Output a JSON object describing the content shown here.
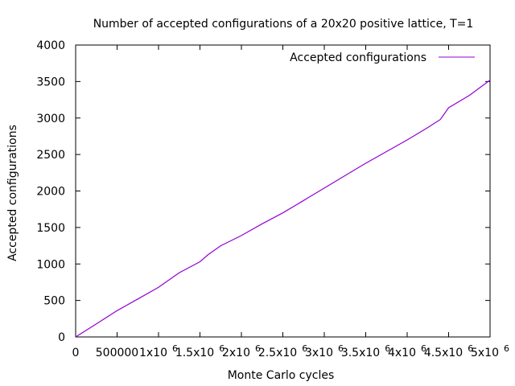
{
  "chart_data": {
    "type": "line",
    "title": "Number of accepted configurations of a 20x20 positive lattice, T=1",
    "xlabel": "Monte Carlo cycles",
    "ylabel": "Accepted configurations",
    "xlim": [
      0,
      5000000
    ],
    "ylim": [
      0,
      4000
    ],
    "grid": false,
    "legend_position": "top-right",
    "x_ticks": [
      {
        "value": 0,
        "mantissa": "0",
        "exp": ""
      },
      {
        "value": 500000,
        "mantissa": "500000",
        "exp": ""
      },
      {
        "value": 1000000,
        "mantissa": "1x10",
        "exp": "6"
      },
      {
        "value": 1500000,
        "mantissa": "1.5x10",
        "exp": "6"
      },
      {
        "value": 2000000,
        "mantissa": "2x10",
        "exp": "6"
      },
      {
        "value": 2500000,
        "mantissa": "2.5x10",
        "exp": "6"
      },
      {
        "value": 3000000,
        "mantissa": "3x10",
        "exp": "6"
      },
      {
        "value": 3500000,
        "mantissa": "3.5x10",
        "exp": "6"
      },
      {
        "value": 4000000,
        "mantissa": "4x10",
        "exp": "6"
      },
      {
        "value": 4500000,
        "mantissa": "4.5x10",
        "exp": "6"
      },
      {
        "value": 5000000,
        "mantissa": "5x10",
        "exp": "6"
      }
    ],
    "y_ticks": [
      {
        "value": 0,
        "label": "0"
      },
      {
        "value": 500,
        "label": "500"
      },
      {
        "value": 1000,
        "label": "1000"
      },
      {
        "value": 1500,
        "label": "1500"
      },
      {
        "value": 2000,
        "label": "2000"
      },
      {
        "value": 2500,
        "label": "2500"
      },
      {
        "value": 3000,
        "label": "3000"
      },
      {
        "value": 3500,
        "label": "3500"
      },
      {
        "value": 4000,
        "label": "4000"
      }
    ],
    "series": [
      {
        "name": "Accepted configurations",
        "color": "#9400d3",
        "x": [
          0,
          250000,
          500000,
          750000,
          1000000,
          1100000,
          1250000,
          1500000,
          1600000,
          1750000,
          2000000,
          2250000,
          2500000,
          2750000,
          3000000,
          3250000,
          3500000,
          3750000,
          4000000,
          4250000,
          4400000,
          4500000,
          4750000,
          5000000
        ],
        "y": [
          0,
          180,
          360,
          520,
          680,
          760,
          880,
          1030,
          1130,
          1250,
          1390,
          1550,
          1700,
          1870,
          2040,
          2210,
          2380,
          2540,
          2700,
          2870,
          2980,
          3140,
          3310,
          3520
        ]
      }
    ]
  }
}
